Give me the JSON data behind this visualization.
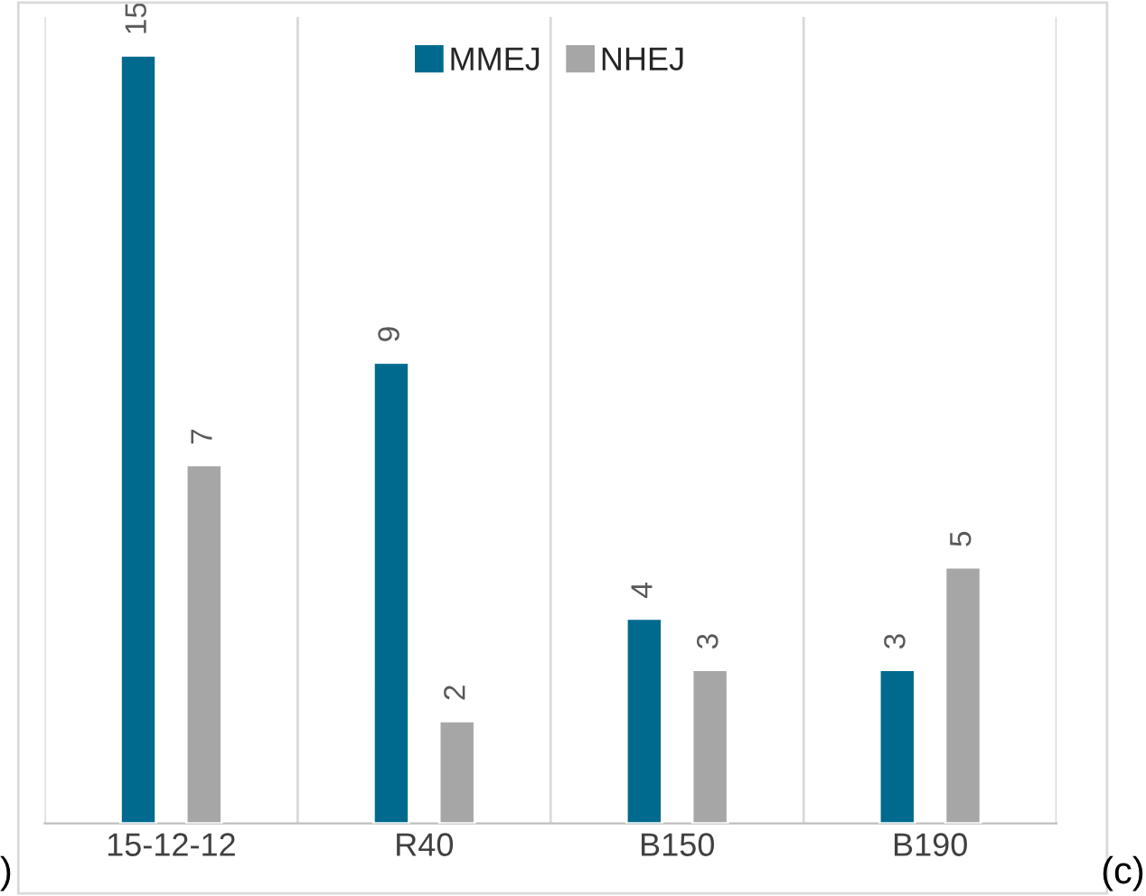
{
  "chart_data": {
    "type": "bar",
    "categories": [
      "15-12-12",
      "R40",
      "B150",
      "B190"
    ],
    "series": [
      {
        "name": "MMEJ",
        "color": "#006a8e",
        "values": [
          15,
          9,
          4,
          3
        ]
      },
      {
        "name": "NHEJ",
        "color": "#a6a6a6",
        "values": [
          7,
          2,
          3,
          5
        ]
      }
    ],
    "data_labels": true,
    "legend": "top",
    "grid": "x",
    "tick_labels": "x",
    "annotations": [
      ")",
      "(c)"
    ]
  }
}
